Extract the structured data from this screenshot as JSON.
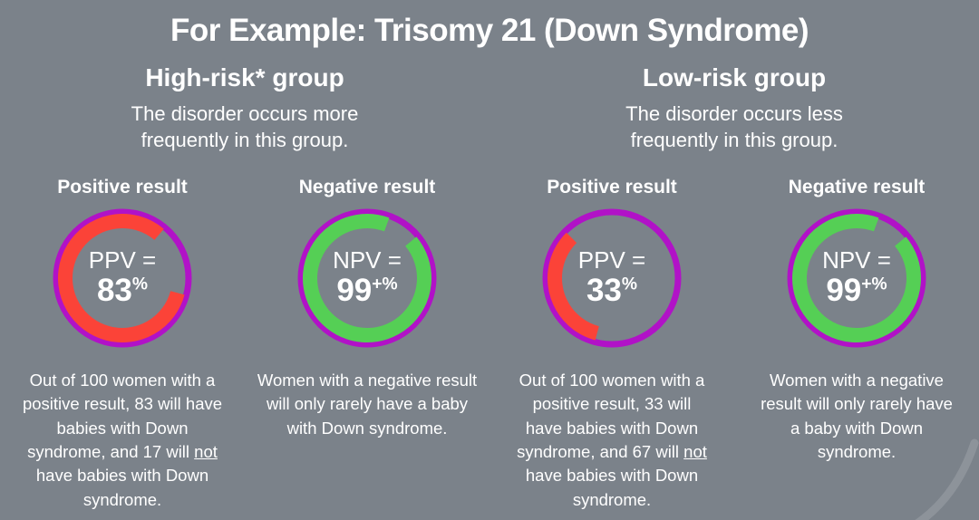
{
  "page": {
    "title": "For Example: Trisomy 21 (Down Syndrome)"
  },
  "colors": {
    "background": "#7b828a",
    "ring_purple": "#b112c7",
    "arc_red": "#fb4338",
    "arc_green": "#55cf55",
    "text": "#ffffff"
  },
  "groups": [
    {
      "heading": "High-risk* group",
      "description": "The disorder occurs more frequently in this group."
    },
    {
      "heading": "Low-risk group",
      "description": "The disorder occurs less frequently in this group."
    }
  ],
  "columns": [
    {
      "result_label": "Positive result",
      "metric_label": "PPV =",
      "value": "83",
      "value_sup": "%",
      "note_segments": [
        {
          "t": "Out of 100 women with a positive result, 83 will have babies with Down syndrome, and 17 will "
        },
        {
          "t": "not",
          "u": true
        },
        {
          "t": " have babies with Down syndrome."
        }
      ]
    },
    {
      "result_label": "Negative result",
      "metric_label": "NPV =",
      "value": "99",
      "value_sup": "+%",
      "note_segments": [
        {
          "t": "Women with a negative result will only rarely have a baby with Down syndrome."
        }
      ]
    },
    {
      "result_label": "Positive result",
      "metric_label": "PPV =",
      "value": "33",
      "value_sup": "%",
      "note_segments": [
        {
          "t": "Out of 100 women with a positive result, 33 will have babies with Down syndrome, and 67 will "
        },
        {
          "t": "not",
          "u": true
        },
        {
          "t": " have babies with Down syndrome."
        }
      ]
    },
    {
      "result_label": "Negative result",
      "metric_label": "NPV =",
      "value": "99",
      "value_sup": "+%",
      "note_segments": [
        {
          "t": "Women with a negative result will only rarely have a baby with Down syndrome."
        }
      ]
    }
  ],
  "chart_data": [
    {
      "type": "donut",
      "group": "High-risk group",
      "result": "Positive result",
      "metric": "PPV",
      "value_label": "83%",
      "value_percent": 83,
      "ring_color": "#b112c7",
      "arc_color": "#fb4338",
      "arc_start_deg": 105,
      "arc_sweep_deg": 295
    },
    {
      "type": "donut",
      "group": "High-risk group",
      "result": "Negative result",
      "metric": "NPV",
      "value_label": "99+%",
      "value_percent": 99,
      "ring_color": "#b112c7",
      "arc_color": "#55cf55",
      "arc_start_deg": 50,
      "arc_sweep_deg": 330
    },
    {
      "type": "donut",
      "group": "Low-risk group",
      "result": "Positive result",
      "metric": "PPV",
      "value_label": "33%",
      "value_percent": 33,
      "ring_color": "#b112c7",
      "arc_color": "#fb4338",
      "arc_start_deg": 195,
      "arc_sweep_deg": 120
    },
    {
      "type": "donut",
      "group": "Low-risk group",
      "result": "Negative result",
      "metric": "NPV",
      "value_label": "99+%",
      "value_percent": 99,
      "ring_color": "#b112c7",
      "arc_color": "#55cf55",
      "arc_start_deg": 50,
      "arc_sweep_deg": 330
    }
  ]
}
